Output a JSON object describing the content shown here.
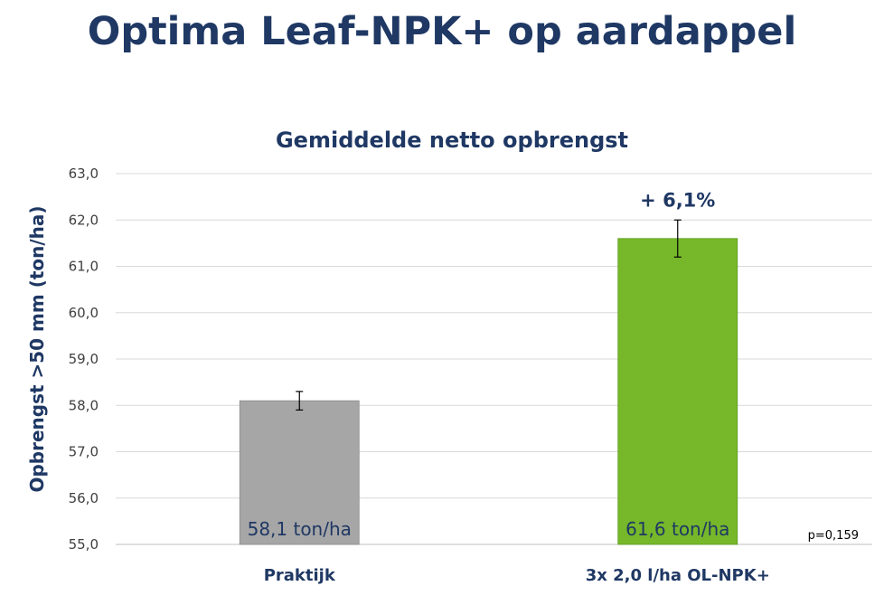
{
  "page": {
    "title": "Optima Leaf-NPK+ op aardappel"
  },
  "chart_data": {
    "type": "bar",
    "title": "Gemiddelde netto opbrengst",
    "xlabel": "",
    "ylabel": "Opbrengst >50 mm (ton/ha)",
    "ylim": [
      55.0,
      63.0
    ],
    "yticks": [
      "55,0",
      "56,0",
      "57,0",
      "58,0",
      "59,0",
      "60,0",
      "61,0",
      "62,0",
      "63,0"
    ],
    "ytick_values": [
      55,
      56,
      57,
      58,
      59,
      60,
      61,
      62,
      63
    ],
    "grid": true,
    "categories": [
      "Praktijk",
      "3x 2,0 l/ha OL-NPK+"
    ],
    "values": [
      58.1,
      61.6
    ],
    "error_bars": [
      [
        57.9,
        58.3
      ],
      [
        61.2,
        62.0
      ]
    ],
    "data_labels": [
      "58,1 ton/ha",
      "61,6 ton/ha"
    ],
    "colors": [
      "#a6a6a6",
      "#76b82a"
    ],
    "annotations": {
      "increase": "+ 6,1%",
      "pvalue": "p=0,159"
    }
  }
}
